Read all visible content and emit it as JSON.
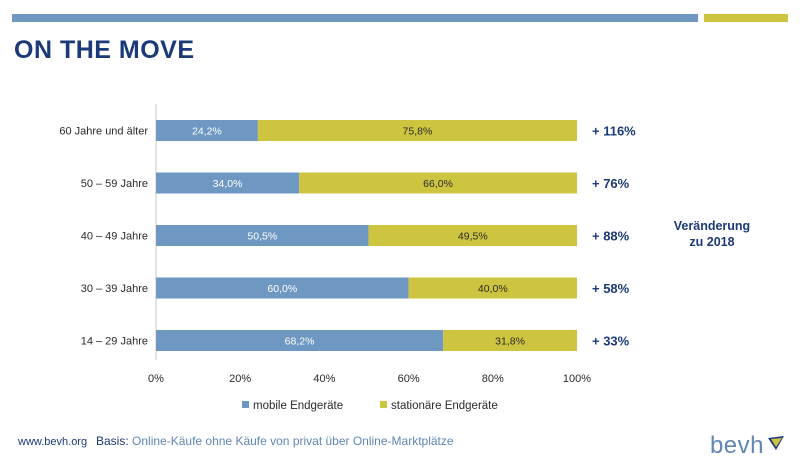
{
  "title": "ON THE MOVE",
  "change_label_line1": "Veränderung",
  "change_label_line2": "zu 2018",
  "footer": {
    "url": "www.bevh.org",
    "basis_label": "Basis:",
    "basis_text": "Online-Käufe ohne Käufe von privat über Online-Marktplätze",
    "logo": "bevh"
  },
  "colors": {
    "mobile": "#6e98c2",
    "stationary": "#cdc43f",
    "accent": "#1c3a78"
  },
  "chart_data": {
    "type": "bar",
    "orientation": "horizontal",
    "stacked": "100%",
    "categories": [
      "60 Jahre und älter",
      "50 – 59 Jahre",
      "40 – 49 Jahre",
      "30 – 39 Jahre",
      "14 – 29 Jahre"
    ],
    "series": [
      {
        "name": "mobile Endgeräte",
        "values": [
          24.2,
          34.0,
          50.5,
          60.0,
          68.2
        ],
        "labels": [
          "24,2%",
          "34,0%",
          "50,5%",
          "60,0%",
          "68,2%"
        ]
      },
      {
        "name": "stationäre Endgeräte",
        "values": [
          75.8,
          66.0,
          49.5,
          40.0,
          31.8
        ],
        "labels": [
          "75,8%",
          "66,0%",
          "49,5%",
          "40,0%",
          "31,8%"
        ]
      }
    ],
    "changes": [
      "+ 116%",
      "+ 76%",
      "+ 88%",
      "+ 58%",
      "+ 33%"
    ],
    "xlim": [
      0,
      100
    ],
    "xticks": [
      "0%",
      "20%",
      "40%",
      "60%",
      "80%",
      "100%"
    ],
    "legend_position": "bottom",
    "grid": false
  }
}
